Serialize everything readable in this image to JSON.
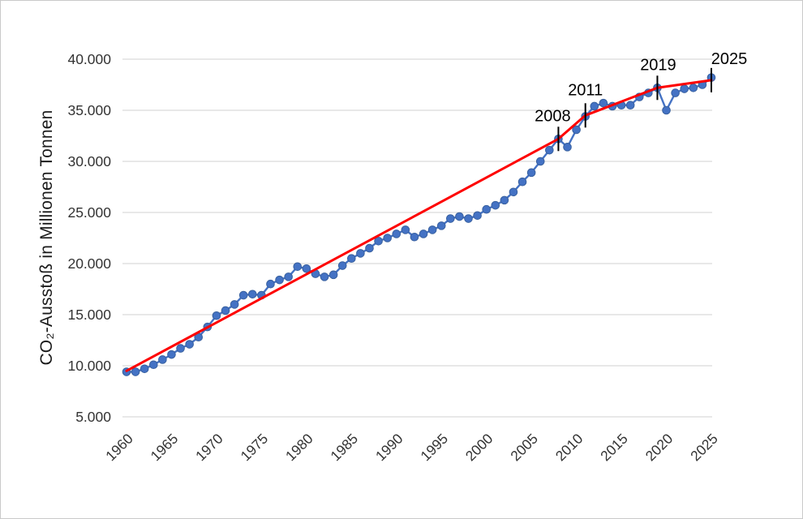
{
  "window": {
    "background": "#ffffff",
    "border_color": "#c9c9c9"
  },
  "chart_data": {
    "type": "line",
    "title": "",
    "xlabel": "",
    "ylabel": "CO₂-Ausstoß in Millionen Tonnen",
    "xlim": [
      1960,
      2025
    ],
    "ylim": [
      5000,
      40000
    ],
    "grid": "horizontal-only",
    "legend": "none",
    "colors": {
      "series_blue": "#4472c4",
      "marker_border": "#39619f",
      "trend_red": "#fe0000",
      "gridline": "#d9d9d9",
      "axis_text": "#333333",
      "annotation": "#000000"
    },
    "y_ticks": [
      {
        "value": 40000,
        "label": "40.000"
      },
      {
        "value": 35000,
        "label": "35.000"
      },
      {
        "value": 30000,
        "label": "30.000"
      },
      {
        "value": 25000,
        "label": "25.000"
      },
      {
        "value": 20000,
        "label": "20.000"
      },
      {
        "value": 15000,
        "label": "15.000"
      },
      {
        "value": 10000,
        "label": "10.000"
      },
      {
        "value": 5000,
        "label": "5.000"
      }
    ],
    "x_ticks": [
      {
        "value": 1960,
        "label": "1960"
      },
      {
        "value": 1965,
        "label": "1965"
      },
      {
        "value": 1970,
        "label": "1970"
      },
      {
        "value": 1975,
        "label": "1975"
      },
      {
        "value": 1980,
        "label": "1980"
      },
      {
        "value": 1985,
        "label": "1985"
      },
      {
        "value": 1990,
        "label": "1990"
      },
      {
        "value": 1995,
        "label": "1995"
      },
      {
        "value": 2000,
        "label": "2000"
      },
      {
        "value": 2005,
        "label": "2005"
      },
      {
        "value": 2010,
        "label": "2010"
      },
      {
        "value": 2015,
        "label": "2015"
      },
      {
        "value": 2020,
        "label": "2020"
      },
      {
        "value": 2025,
        "label": "2025"
      }
    ],
    "series": [
      {
        "name": "annual_values",
        "type": "line+markers",
        "color": "#4472c4",
        "x_start": 1960,
        "x_step": 1,
        "values": [
          9400,
          9400,
          9700,
          10100,
          10600,
          11100,
          11700,
          12100,
          12800,
          13800,
          14900,
          15400,
          16000,
          16900,
          17000,
          16900,
          18000,
          18400,
          18700,
          19700,
          19500,
          19000,
          18700,
          18900,
          19800,
          20500,
          21000,
          21500,
          22200,
          22500,
          22900,
          23300,
          22600,
          22900,
          23300,
          23700,
          24400,
          24600,
          24400,
          24700,
          25300,
          25700,
          26200,
          27000,
          28000,
          28900,
          30000,
          31100,
          32200,
          31400,
          33100,
          34400,
          35400,
          35700,
          35400,
          35500,
          35500,
          36300,
          36700,
          37200,
          35000,
          36700,
          37100,
          37200,
          37500,
          38200
        ]
      },
      {
        "name": "trend_line",
        "type": "line",
        "color": "#fe0000",
        "points": [
          [
            1960,
            9500
          ],
          [
            2008,
            32200
          ],
          [
            2011,
            34500
          ],
          [
            2019,
            37200
          ],
          [
            2025,
            37950
          ]
        ]
      }
    ],
    "annotations": [
      {
        "label": "2008",
        "year": 2008,
        "value": 32200,
        "text_dx": -7,
        "text_dy": -22
      },
      {
        "label": "2011",
        "year": 2011,
        "value": 34500,
        "text_dx": 0,
        "text_dy": -25
      },
      {
        "label": "2019",
        "year": 2019,
        "value": 37200,
        "text_dx": 1,
        "text_dy": -22
      },
      {
        "label": "2025",
        "year": 2025,
        "value": 37950,
        "text_dx": 22,
        "text_dy": -20
      }
    ]
  }
}
